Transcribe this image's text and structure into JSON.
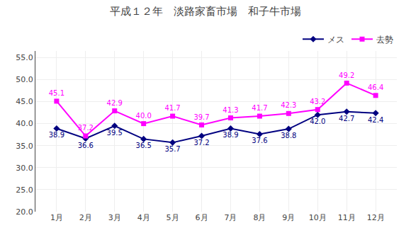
{
  "chart_data": {
    "type": "line",
    "title": "平成１２年　淡路家畜市場　和子牛市場",
    "categories": [
      "1月",
      "2月",
      "3月",
      "4月",
      "5月",
      "6月",
      "7月",
      "8月",
      "9月",
      "10月",
      "11月",
      "12月"
    ],
    "series": [
      {
        "name": "メス",
        "color": "#000080",
        "marker": "diamond",
        "values": [
          38.9,
          36.6,
          39.5,
          36.5,
          35.7,
          37.2,
          38.9,
          37.6,
          38.8,
          42.0,
          42.7,
          42.4
        ],
        "value_labels": [
          "38.9",
          "36.6",
          "39.5",
          "36.5",
          "35.7",
          "37.2",
          "38.9",
          "37.6",
          "38.8",
          "42.0",
          "42.7",
          "42.4"
        ]
      },
      {
        "name": "去勢",
        "color": "#FF00FF",
        "marker": "square",
        "values": [
          45.1,
          37.2,
          42.9,
          40.0,
          41.7,
          39.7,
          41.3,
          41.7,
          42.3,
          43.2,
          49.2,
          46.4
        ],
        "value_labels": [
          "45.1",
          "37.2",
          "42.9",
          "40.0",
          "41.7",
          "39.7",
          "41.3",
          "41.7",
          "42.3",
          "43.2",
          "49.2",
          "46.4"
        ]
      }
    ],
    "ylim": [
      20.0,
      56.5
    ],
    "yticks": [
      {
        "value": 20.0,
        "label": "20.0"
      },
      {
        "value": 25.0,
        "label": "25.0"
      },
      {
        "value": 30.0,
        "label": "30.0"
      },
      {
        "value": 35.0,
        "label": "35.0"
      },
      {
        "value": 40.0,
        "label": "40.0"
      },
      {
        "value": 45.0,
        "label": "45.0"
      },
      {
        "value": 50.0,
        "label": "50.0"
      },
      {
        "value": 55.0,
        "label": "55.0"
      }
    ],
    "grid": true,
    "legend": "upper right",
    "data_labels": true
  }
}
